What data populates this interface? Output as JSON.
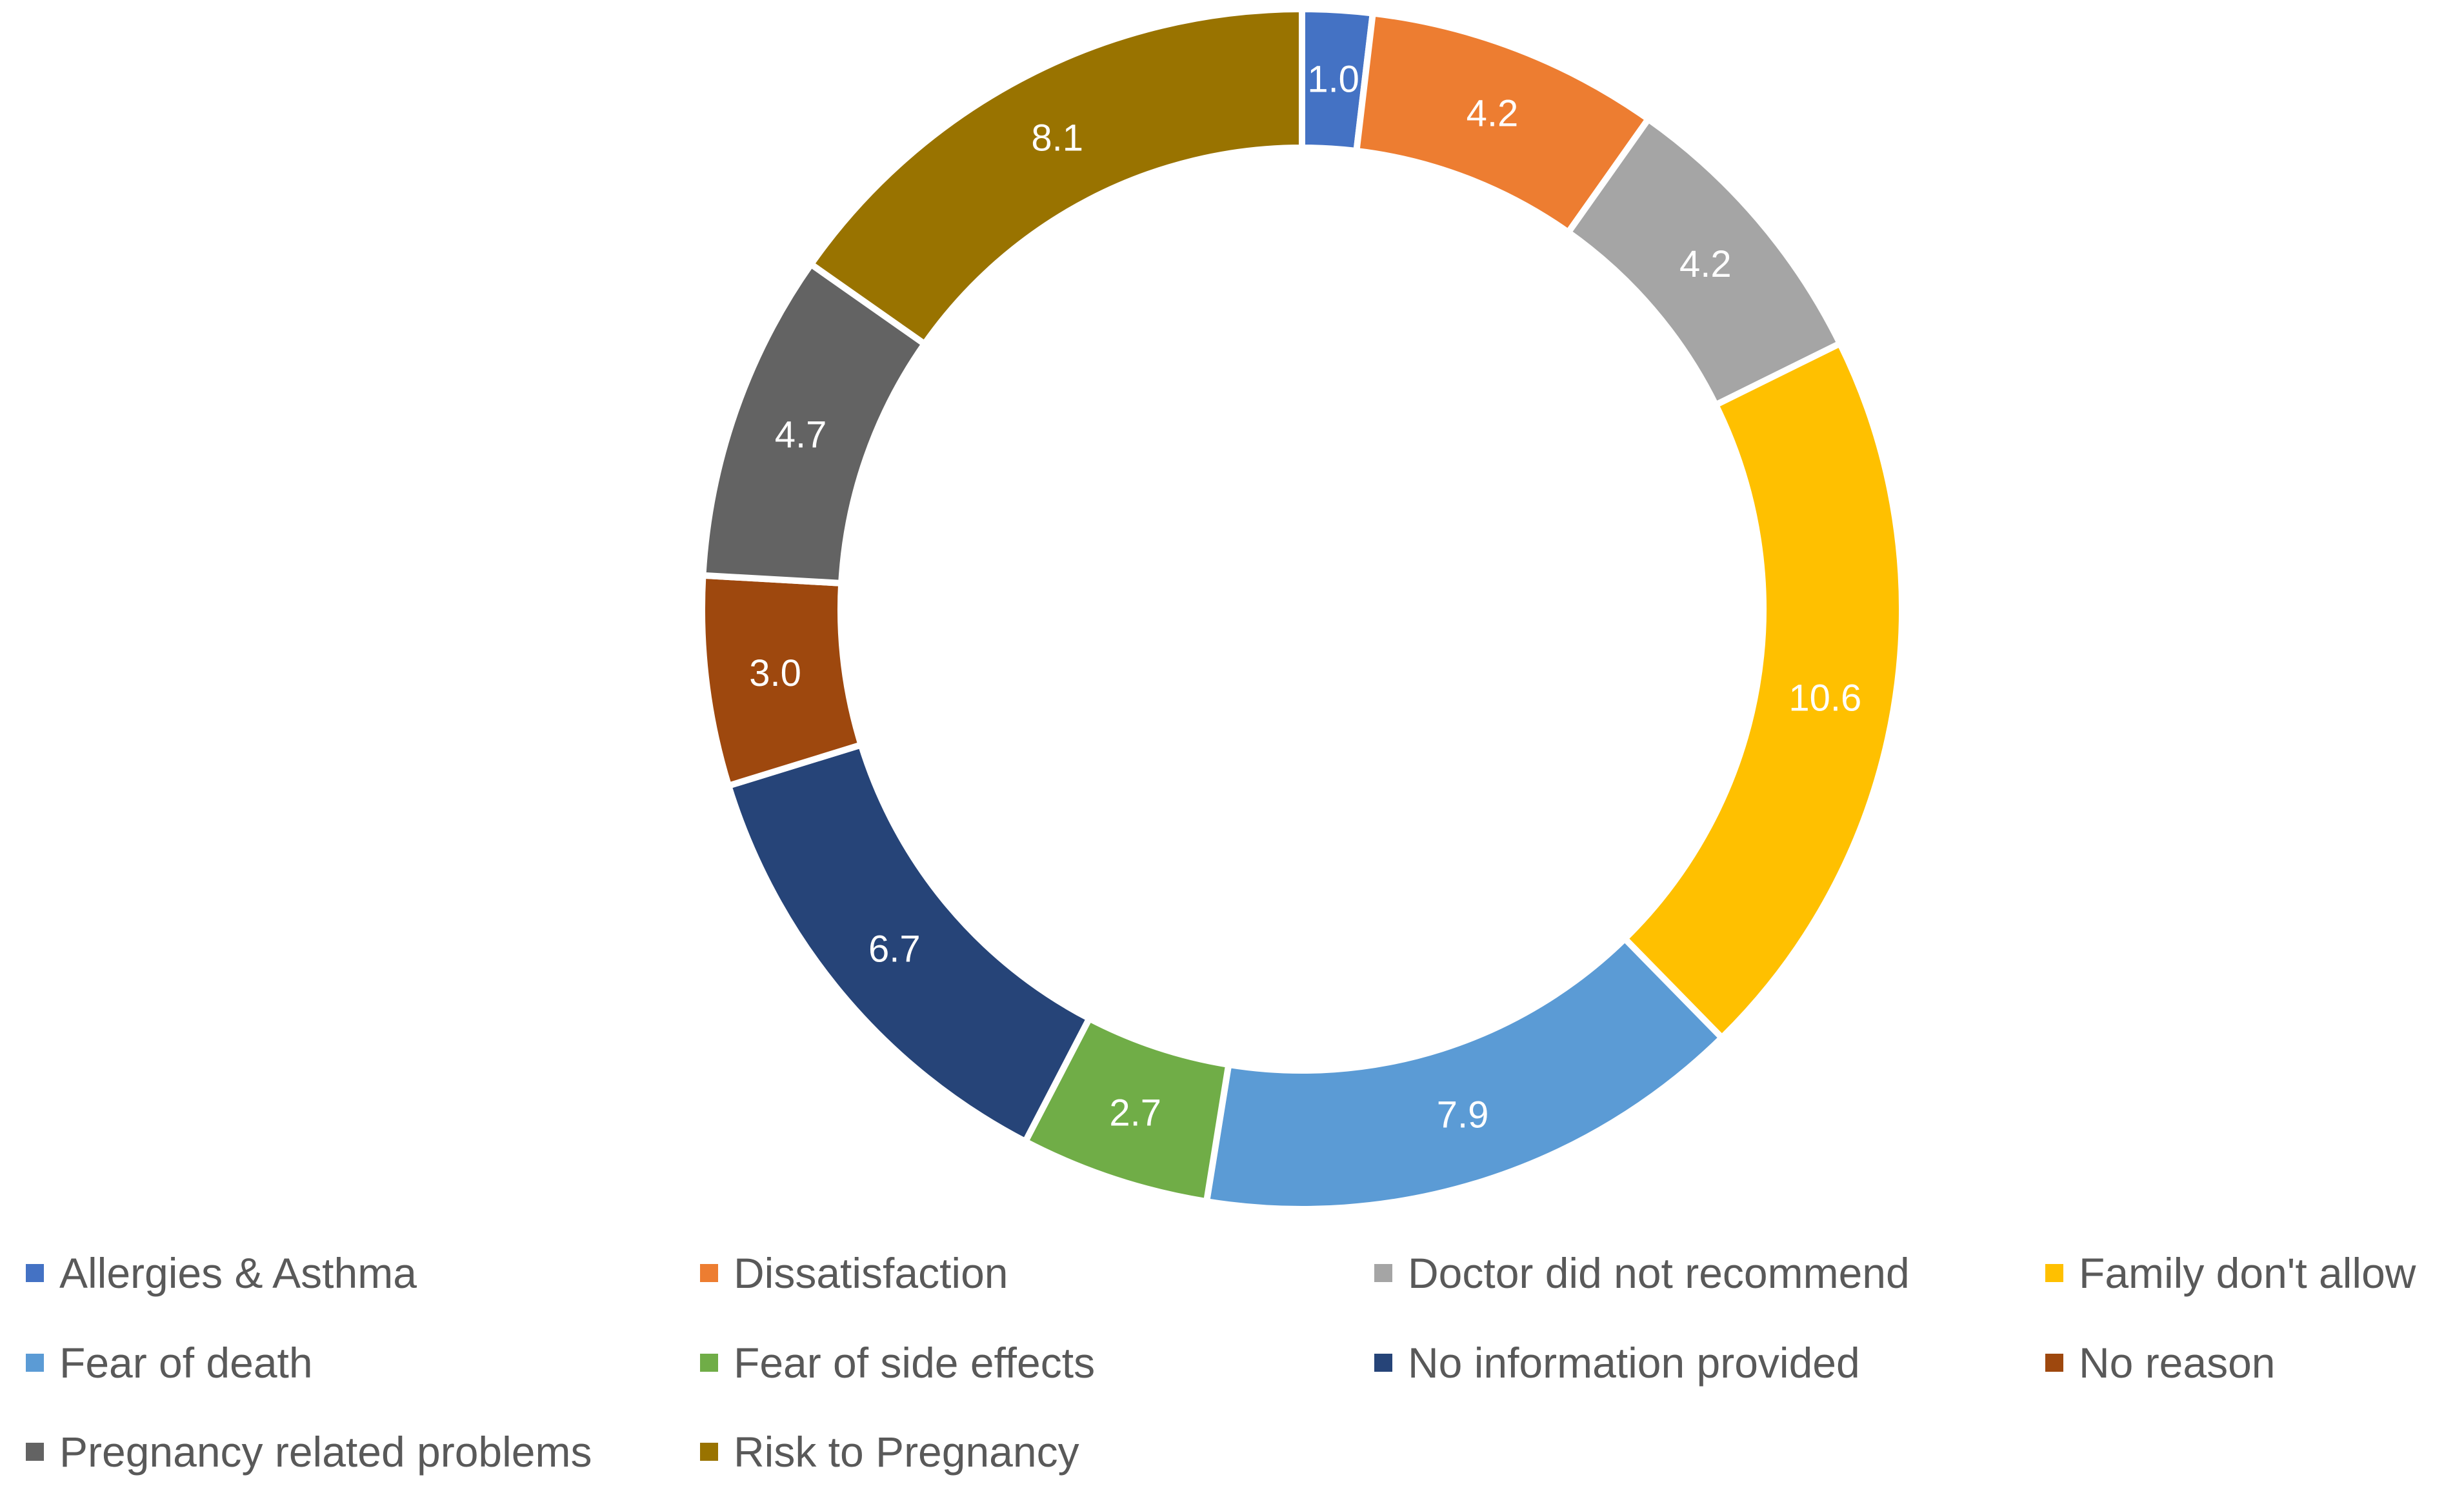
{
  "chart_data": {
    "type": "pie",
    "variant": "donut",
    "title": "",
    "categories": [
      "Allergies & Asthma",
      "Dissatisfaction",
      "Doctor did not recommend",
      "Family don't allow",
      "Fear of death",
      "Fear of side effects",
      "No information provided",
      "No reason",
      "Pregnancy related problems",
      "Risk to Pregnancy"
    ],
    "values": [
      1.0,
      4.2,
      4.2,
      10.6,
      7.9,
      2.7,
      6.7,
      3.0,
      4.7,
      8.1
    ],
    "labels": [
      "1.0",
      "4.2",
      "4.2",
      "10.6",
      "7.9",
      "2.7",
      "6.7",
      "3.0",
      "4.7",
      "8.1"
    ],
    "colors": [
      "#4472C4",
      "#ED7D31",
      "#A5A5A5",
      "#FFC000",
      "#5B9BD5",
      "#70AD47",
      "#264478",
      "#9E480E",
      "#636363",
      "#997300"
    ],
    "legend_position": "bottom"
  }
}
